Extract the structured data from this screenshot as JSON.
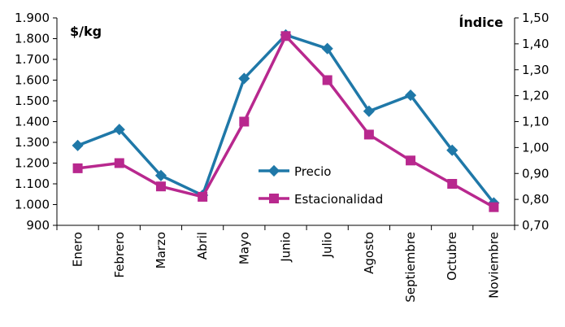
{
  "chart_data": {
    "type": "line",
    "categories": [
      "Enero",
      "Febrero",
      "Marzo",
      "Abril",
      "Mayo",
      "Junio",
      "Julio",
      "Agosto",
      "Septiembre",
      "Octubre",
      "Noviembre"
    ],
    "y_left": {
      "label": "$/kg",
      "range": [
        900,
        1900
      ],
      "step": 100,
      "tick_labels": [
        "900",
        "1.000",
        "1.100",
        "1.200",
        "1.300",
        "1.400",
        "1.500",
        "1.600",
        "1.700",
        "1.800",
        "1.900"
      ]
    },
    "y_right": {
      "label": "Índice",
      "range": [
        0.7,
        1.5
      ],
      "step": 0.1,
      "tick_labels": [
        "0,70",
        "0,80",
        "0,90",
        "1,00",
        "1,10",
        "1,20",
        "1,30",
        "1,40",
        "1,50"
      ]
    },
    "series": [
      {
        "name": "Precio",
        "axis": "left",
        "color": "#1F78A8",
        "marker": "diamond",
        "values": [
          1285,
          1362,
          1140,
          1045,
          1608,
          1818,
          1752,
          1450,
          1527,
          1262,
          1008
        ]
      },
      {
        "name": "Estacionalidad",
        "axis": "right",
        "color": "#B8288E",
        "marker": "square",
        "values": [
          0.92,
          0.94,
          0.85,
          0.81,
          1.1,
          1.43,
          1.26,
          1.05,
          0.95,
          0.86,
          0.77
        ]
      }
    ],
    "legend": "center",
    "grid": false
  }
}
